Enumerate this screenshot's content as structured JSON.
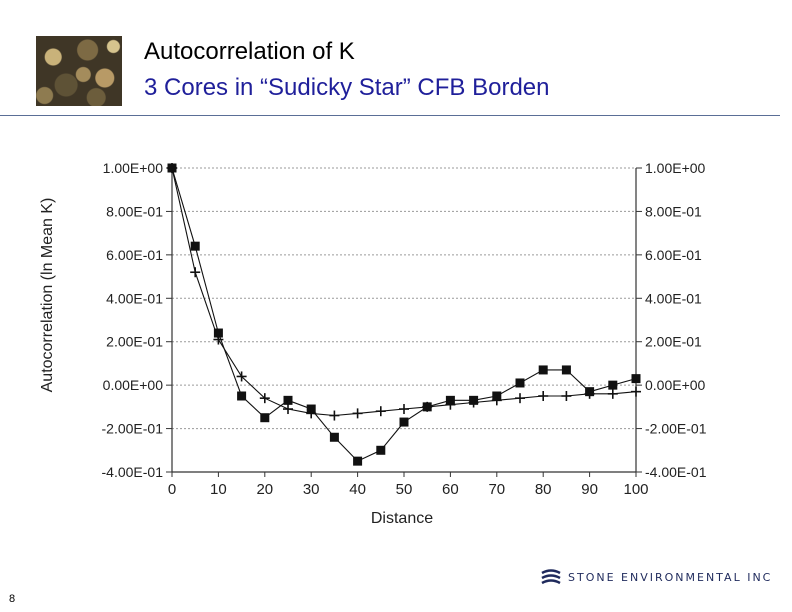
{
  "slide": {
    "title_line1": "Autocorrelation of K",
    "title_line2": "3 Cores in “Sudicky Star” CFB Borden",
    "page_number": "8",
    "logo_text": "STONE ENVIRONMENTAL INC"
  },
  "colors": {
    "title_line1": "#000000",
    "title_line2": "#1f1f9a",
    "rule": "#5a6e96",
    "series": "#111111",
    "grid": "#9a9a9a"
  },
  "icons": [
    "gravel-photo",
    "stone-environmental-logo"
  ],
  "chart_data": {
    "type": "line",
    "xlabel": "Distance",
    "ylabel": "Autocorrelation (ln Mean K)",
    "xlim": [
      0,
      100
    ],
    "ylim": [
      -0.4,
      1.0
    ],
    "x_ticks": [
      "0",
      "10",
      "20",
      "30",
      "40",
      "50",
      "60",
      "70",
      "80",
      "90",
      "100"
    ],
    "y_ticks_left": [
      "1.00E+00",
      "8.00E-01",
      "6.00E-01",
      "4.00E-01",
      "2.00E-01",
      "0.00E+00",
      "-2.00E-01",
      "-4.00E-01"
    ],
    "y_ticks_right": [
      "1.00E+00",
      "8.00E-01",
      "6.00E-01",
      "4.00E-01",
      "2.00E-01",
      "0.00E+00",
      "-2.00E-01",
      "-4.00E-01"
    ],
    "y_tick_values": [
      1.0,
      0.8,
      0.6,
      0.4,
      0.2,
      0.0,
      -0.2,
      -0.4
    ],
    "x_tick_values": [
      0,
      10,
      20,
      30,
      40,
      50,
      60,
      70,
      80,
      90,
      100
    ],
    "grid": true,
    "legend": "none",
    "series": [
      {
        "marker": "square",
        "x": [
          0,
          5,
          10,
          15,
          20,
          25,
          30,
          35,
          40,
          45,
          50,
          55,
          60,
          65,
          70,
          75,
          80,
          85,
          90,
          95,
          100
        ],
        "y": [
          1.0,
          0.64,
          0.24,
          -0.05,
          -0.15,
          -0.07,
          -0.11,
          -0.24,
          -0.35,
          -0.3,
          -0.17,
          -0.1,
          -0.07,
          -0.07,
          -0.05,
          0.01,
          0.07,
          0.07,
          -0.03,
          0.0,
          0.03
        ]
      },
      {
        "marker": "plus",
        "x": [
          0,
          5,
          10,
          15,
          20,
          25,
          30,
          35,
          40,
          45,
          50,
          55,
          60,
          65,
          70,
          75,
          80,
          85,
          90,
          95,
          100
        ],
        "y": [
          1.0,
          0.52,
          0.21,
          0.04,
          -0.06,
          -0.11,
          -0.13,
          -0.14,
          -0.13,
          -0.12,
          -0.11,
          -0.1,
          -0.09,
          -0.08,
          -0.07,
          -0.06,
          -0.05,
          -0.05,
          -0.04,
          -0.04,
          -0.03
        ]
      }
    ]
  }
}
